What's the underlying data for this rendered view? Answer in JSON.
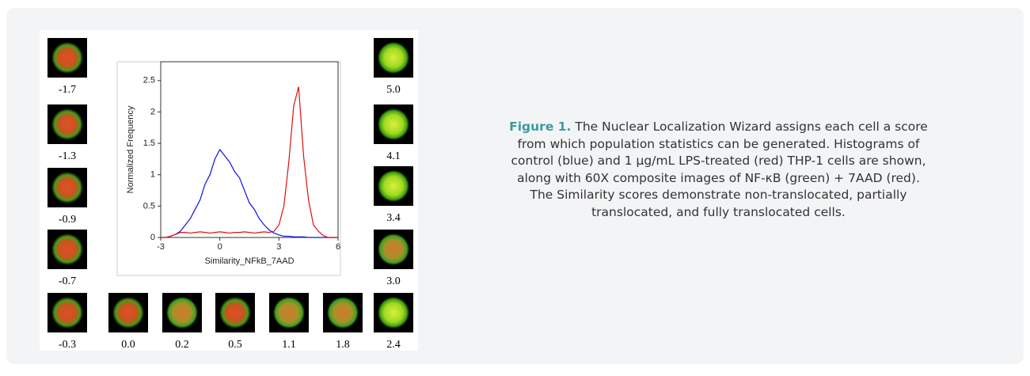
{
  "chart_data": {
    "type": "line",
    "xlabel": "Similarity_NFkB_7AAD",
    "ylabel": "Normalized Frequency",
    "xlim": [
      -3,
      6
    ],
    "xticks": [
      -3,
      0,
      3,
      6
    ],
    "ylim": [
      0,
      2.8
    ],
    "yticks": [
      0,
      0.5,
      1,
      1.5,
      2,
      2.5
    ],
    "x": [
      -3,
      -2.75,
      -2.5,
      -2.25,
      -2,
      -1.75,
      -1.5,
      -1.25,
      -1,
      -0.75,
      -0.5,
      -0.25,
      0,
      0.25,
      0.5,
      0.75,
      1,
      1.25,
      1.5,
      1.75,
      2,
      2.25,
      2.5,
      2.75,
      3,
      3.25,
      3.5,
      3.75,
      4,
      4.25,
      4.5,
      4.75,
      5,
      5.25,
      5.5,
      5.75,
      6
    ],
    "series": [
      {
        "color": "#1010e0",
        "values": [
          0,
          0,
          0.02,
          0.05,
          0.1,
          0.2,
          0.3,
          0.45,
          0.6,
          0.85,
          1.0,
          1.25,
          1.4,
          1.3,
          1.2,
          1.05,
          0.95,
          0.75,
          0.55,
          0.45,
          0.3,
          0.2,
          0.12,
          0.07,
          0.04,
          0.02,
          0.02,
          0.01,
          0.01,
          0.01,
          0,
          0,
          0,
          0,
          0,
          0,
          0
        ]
      },
      {
        "color": "#e01010",
        "values": [
          0,
          0,
          0.02,
          0.05,
          0.08,
          0.08,
          0.07,
          0.08,
          0.09,
          0.08,
          0.07,
          0.08,
          0.09,
          0.08,
          0.07,
          0.08,
          0.08,
          0.09,
          0.08,
          0.07,
          0.08,
          0.09,
          0.08,
          0.1,
          0.2,
          0.5,
          1.2,
          2.1,
          2.4,
          1.3,
          0.6,
          0.2,
          0.1,
          0.03,
          0,
          0,
          0
        ]
      }
    ]
  },
  "cell_scores": [
    "-1.7",
    "-1.3",
    "-0.9",
    "-0.7",
    "-0.3",
    "0.0",
    "0.2",
    "0.5",
    "1.1",
    "1.8",
    "2.4",
    "3.0",
    "3.4",
    "4.1",
    "5.0"
  ],
  "caption": {
    "label": "Figure 1.",
    "text": "The Nuclear Localization Wizard assigns each cell a score from which population statistics can be generated. Histograms of control (blue) and 1 µg/mL LPS-treated (red) THP-1 cells are shown, along with 60X composite images of NF-κB (green) + 7AAD (red). The Similarity scores demonstrate non-translocated, partially translocated, and fully translocated cells."
  }
}
